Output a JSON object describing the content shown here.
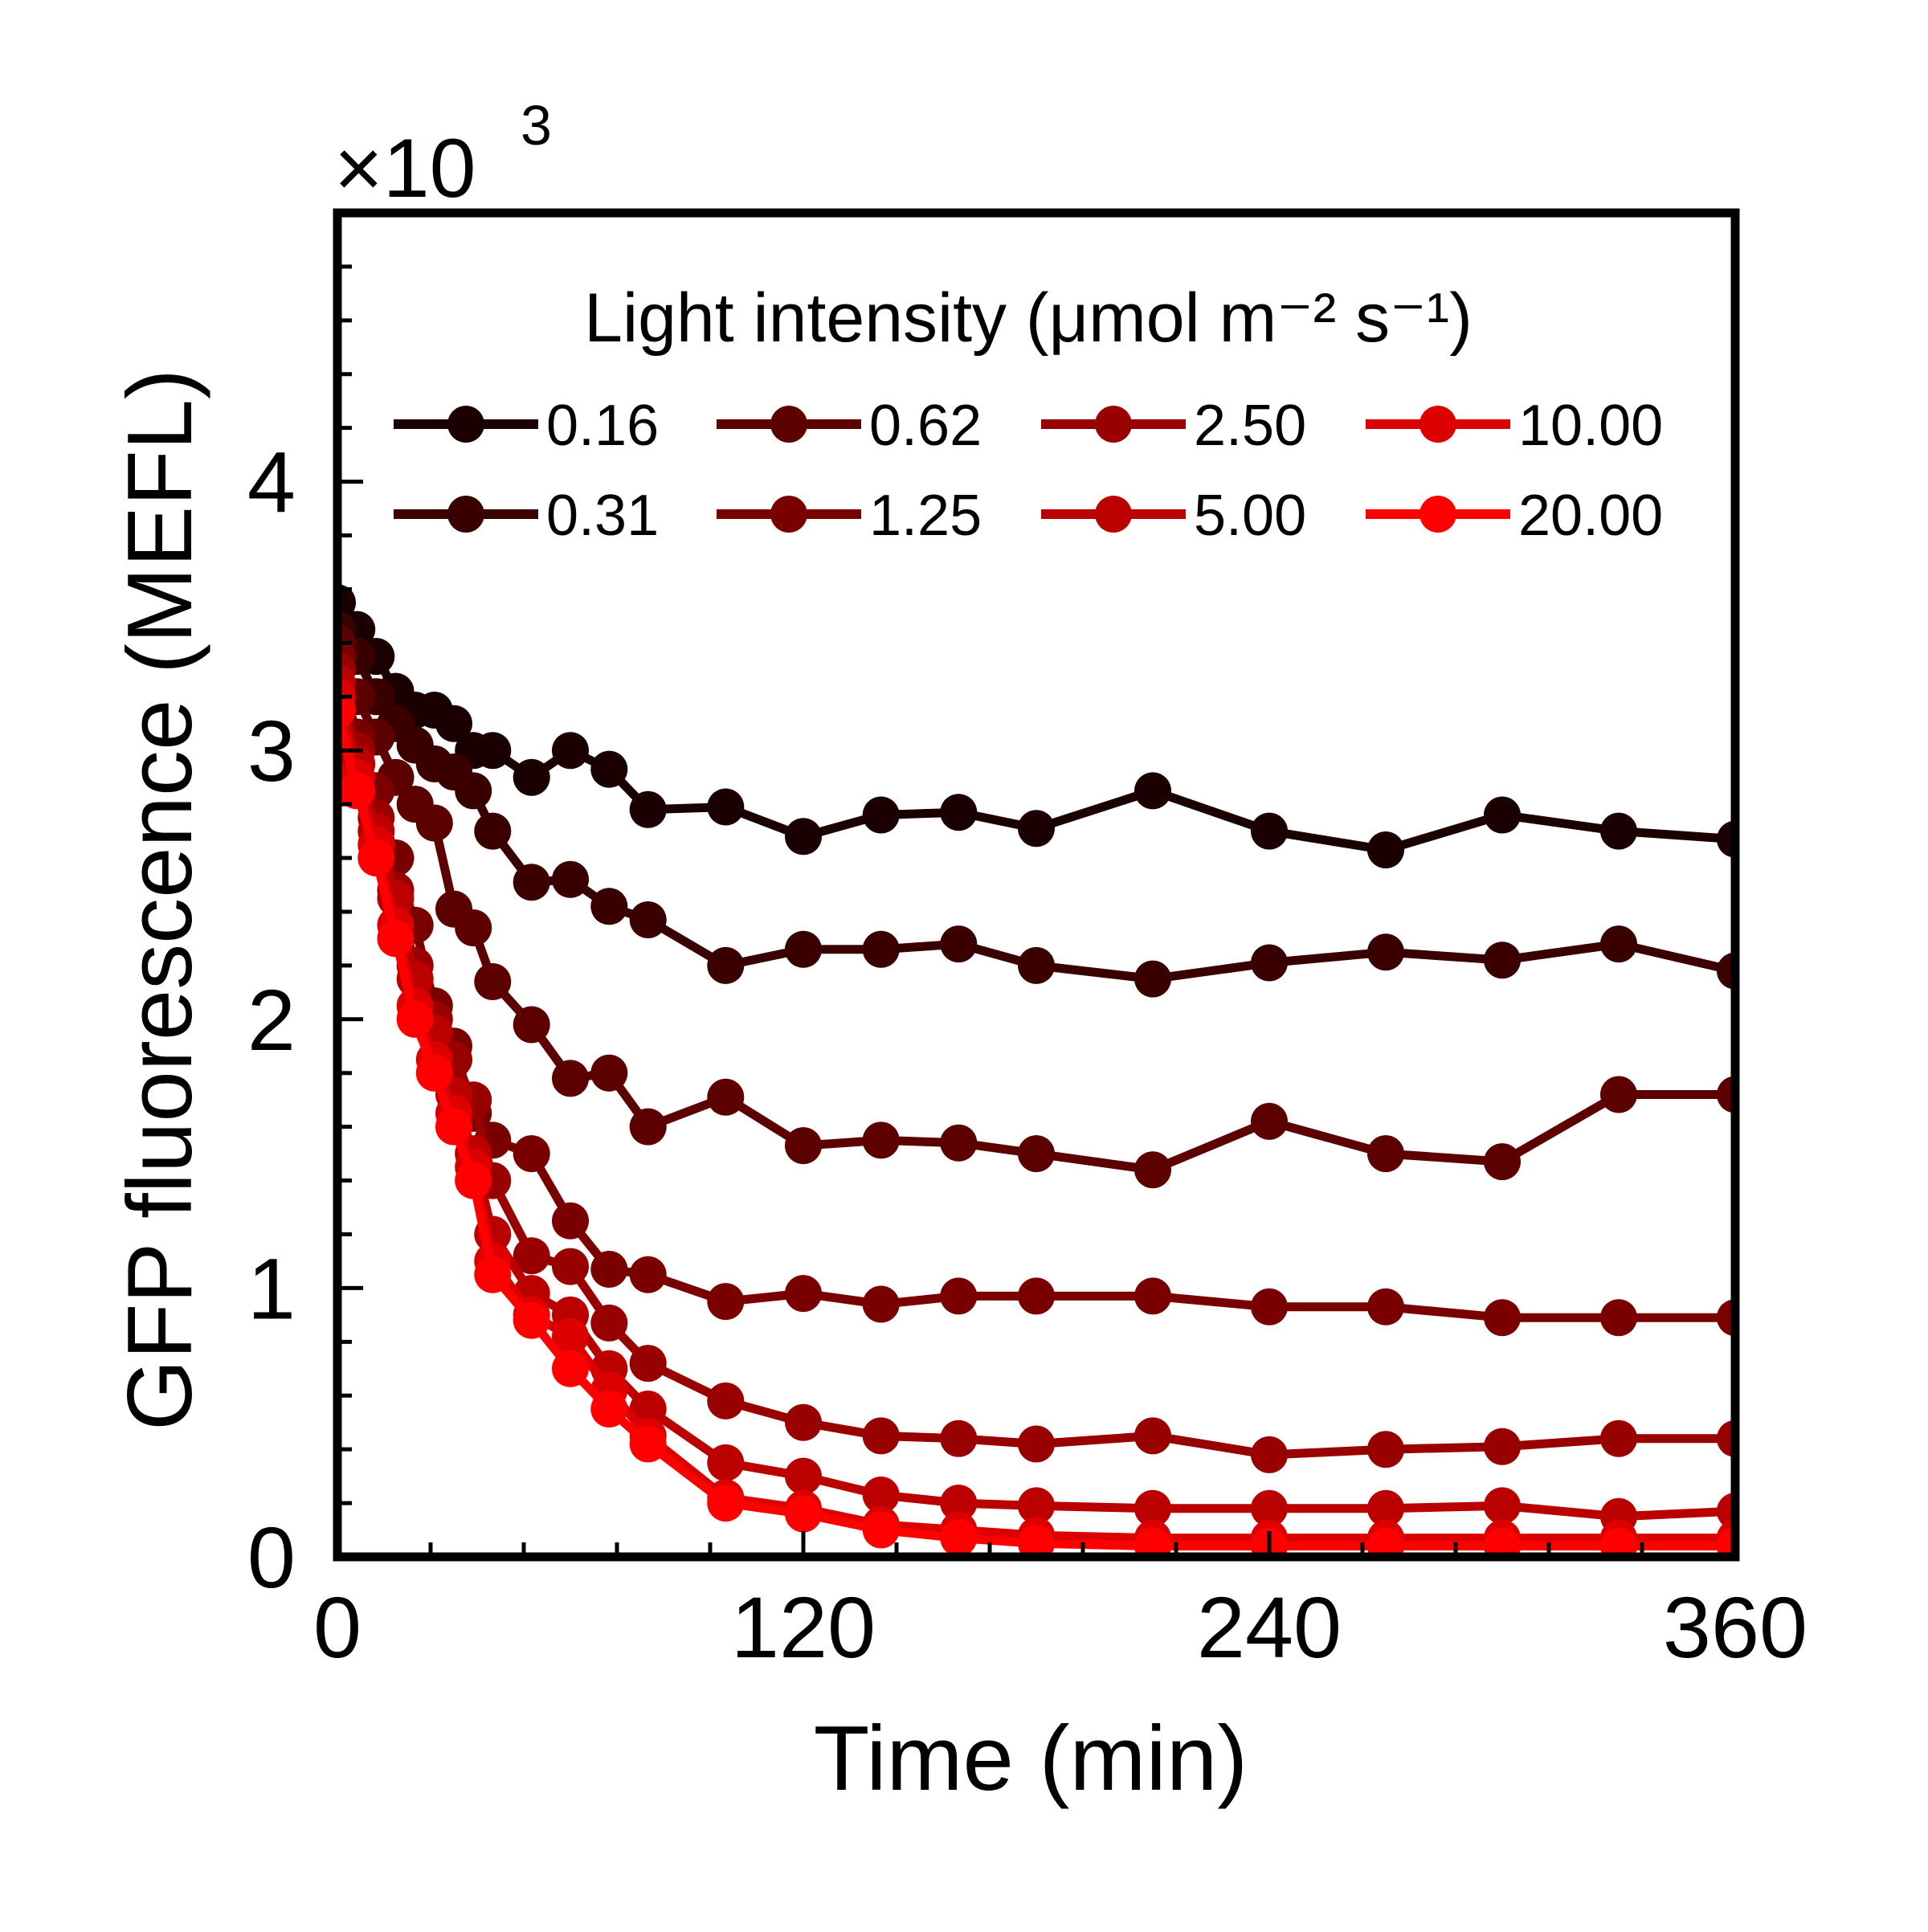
{
  "chart_data": {
    "type": "line",
    "xlabel": "Time (min)",
    "ylabel": "GFP fluorescence (MEFL)",
    "y_multiplier": {
      "base": "×10",
      "exponent": "3"
    },
    "xlim": [
      0,
      360
    ],
    "ylim": [
      0,
      5.0
    ],
    "xticks": [
      0,
      120,
      240,
      360
    ],
    "yticks": [
      0,
      1,
      2,
      3,
      4
    ],
    "grid": false,
    "legend": {
      "title": "Light intensity (μmol m⁻² s⁻¹)",
      "placement": "top",
      "columns": 4
    },
    "x": [
      0,
      5,
      10,
      15,
      20,
      25,
      30,
      35,
      40,
      50,
      60,
      70,
      80,
      100,
      120,
      140,
      160,
      180,
      210,
      240,
      270,
      300,
      330,
      360
    ],
    "series": [
      {
        "name": "0.16",
        "color": "#1a0000",
        "values": [
          3.55,
          3.45,
          3.35,
          3.22,
          3.15,
          3.15,
          3.1,
          3.0,
          3.0,
          2.9,
          3.0,
          2.93,
          2.78,
          2.79,
          2.68,
          2.76,
          2.77,
          2.71,
          2.85,
          2.7,
          2.63,
          2.76,
          2.7,
          2.67
        ]
      },
      {
        "name": "0.31",
        "color": "#3a0000",
        "values": [
          3.45,
          3.35,
          3.2,
          3.1,
          3.02,
          2.95,
          2.92,
          2.85,
          2.7,
          2.51,
          2.52,
          2.42,
          2.37,
          2.2,
          2.26,
          2.26,
          2.28,
          2.2,
          2.15,
          2.21,
          2.25,
          2.22,
          2.28,
          2.18
        ]
      },
      {
        "name": "0.62",
        "color": "#5c0000",
        "values": [
          3.4,
          3.2,
          3.05,
          2.9,
          2.8,
          2.73,
          2.41,
          2.34,
          2.14,
          1.98,
          1.78,
          1.8,
          1.6,
          1.71,
          1.53,
          1.55,
          1.54,
          1.5,
          1.44,
          1.62,
          1.5,
          1.47,
          1.72,
          1.72
        ]
      },
      {
        "name": "1.25",
        "color": "#7a0000",
        "values": [
          3.35,
          3.05,
          2.85,
          2.6,
          2.35,
          2.05,
          1.9,
          1.65,
          1.55,
          1.5,
          1.25,
          1.07,
          1.05,
          0.95,
          0.98,
          0.94,
          0.97,
          0.97,
          0.97,
          0.93,
          0.93,
          0.89,
          0.89,
          0.89
        ]
      },
      {
        "name": "2.50",
        "color": "#990000",
        "values": [
          3.3,
          3.0,
          2.75,
          2.48,
          2.2,
          2.0,
          1.85,
          1.7,
          1.4,
          1.12,
          1.08,
          0.87,
          0.72,
          0.58,
          0.5,
          0.45,
          0.44,
          0.42,
          0.45,
          0.38,
          0.4,
          0.41,
          0.44,
          0.44
        ]
      },
      {
        "name": "5.00",
        "color": "#bb0000",
        "values": [
          3.25,
          2.95,
          2.7,
          2.45,
          2.15,
          1.95,
          1.72,
          1.5,
          1.2,
          0.98,
          0.9,
          0.7,
          0.55,
          0.35,
          0.3,
          0.23,
          0.2,
          0.19,
          0.18,
          0.18,
          0.18,
          0.19,
          0.15,
          0.17
        ]
      },
      {
        "name": "10.00",
        "color": "#dd0000",
        "values": [
          3.2,
          2.9,
          2.65,
          2.35,
          2.05,
          1.85,
          1.65,
          1.45,
          1.1,
          0.9,
          0.82,
          0.62,
          0.45,
          0.22,
          0.18,
          0.12,
          0.1,
          0.08,
          0.07,
          0.07,
          0.07,
          0.07,
          0.07,
          0.07
        ]
      },
      {
        "name": "20.00",
        "color": "#ff0000",
        "values": [
          3.15,
          2.85,
          2.6,
          2.3,
          2.0,
          1.8,
          1.6,
          1.4,
          1.05,
          0.88,
          0.7,
          0.55,
          0.42,
          0.2,
          0.16,
          0.1,
          0.07,
          0.05,
          0.04,
          0.04,
          0.04,
          0.04,
          0.04,
          0.04
        ]
      }
    ]
  }
}
